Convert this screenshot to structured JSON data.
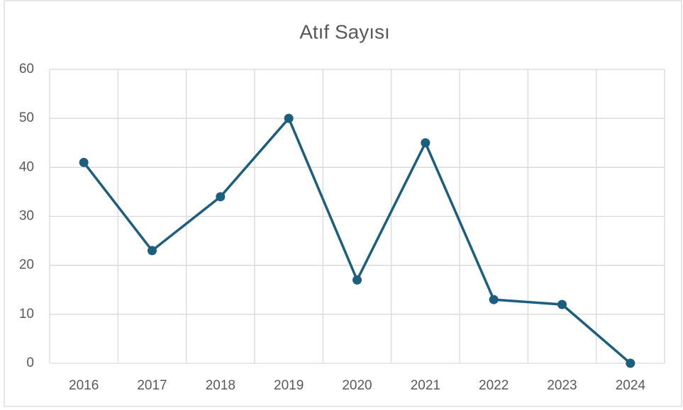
{
  "chart_data": {
    "type": "line",
    "title": "Atıf Sayısı",
    "categories": [
      "2016",
      "2017",
      "2018",
      "2019",
      "2020",
      "2021",
      "2022",
      "2023",
      "2024"
    ],
    "values": [
      41,
      23,
      34,
      50,
      17,
      45,
      13,
      12,
      0
    ],
    "color": "#1b5e7e",
    "ylim": [
      0,
      60
    ],
    "yticks": [
      0,
      10,
      20,
      30,
      40,
      50,
      60
    ],
    "grid": true
  }
}
